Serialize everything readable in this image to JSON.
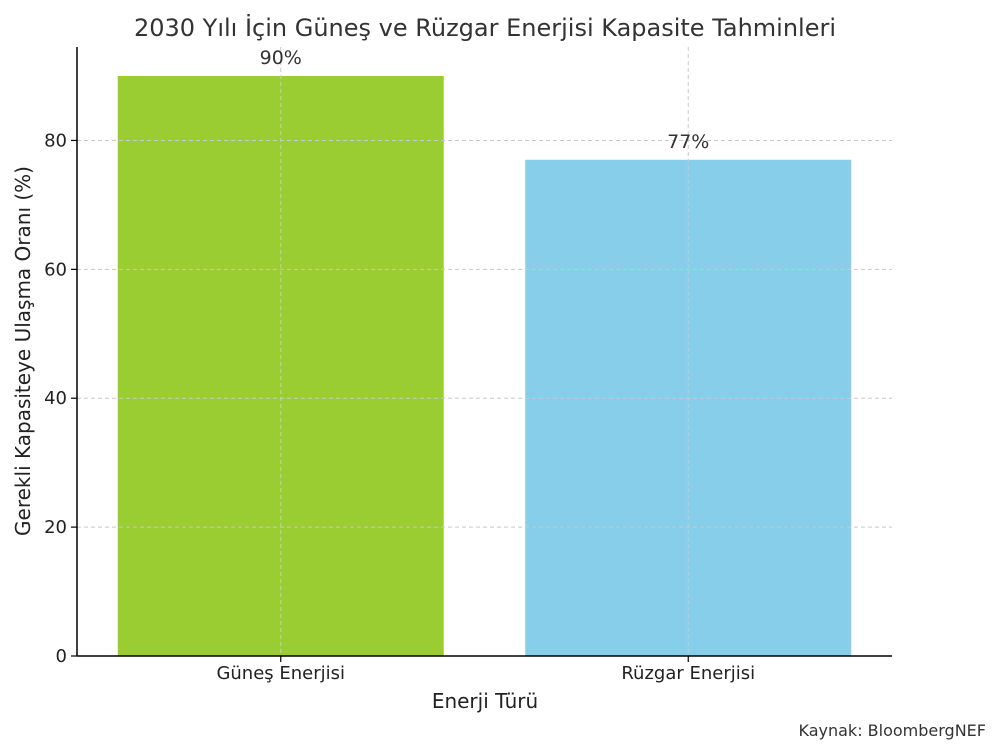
{
  "chart_data": {
    "type": "bar",
    "title": "2030 Yılı İçin Güneş ve Rüzgar Enerjisi Kapasite Tahminleri",
    "xlabel": "Enerji Türü",
    "ylabel": "Gerekli Kapasiteye Ulaşma Oranı (%)",
    "categories": [
      "Güneş Enerjisi",
      "Rüzgar Enerjisi"
    ],
    "values": [
      90,
      77
    ],
    "data_labels": [
      "90%",
      "77%"
    ],
    "colors": [
      "#9ACD32",
      "#87CEEB"
    ],
    "ylim": [
      0,
      94.5
    ],
    "yticks": [
      0,
      20,
      40,
      60,
      80
    ],
    "grid": true,
    "source": "Kaynak: BloombergNEF"
  }
}
